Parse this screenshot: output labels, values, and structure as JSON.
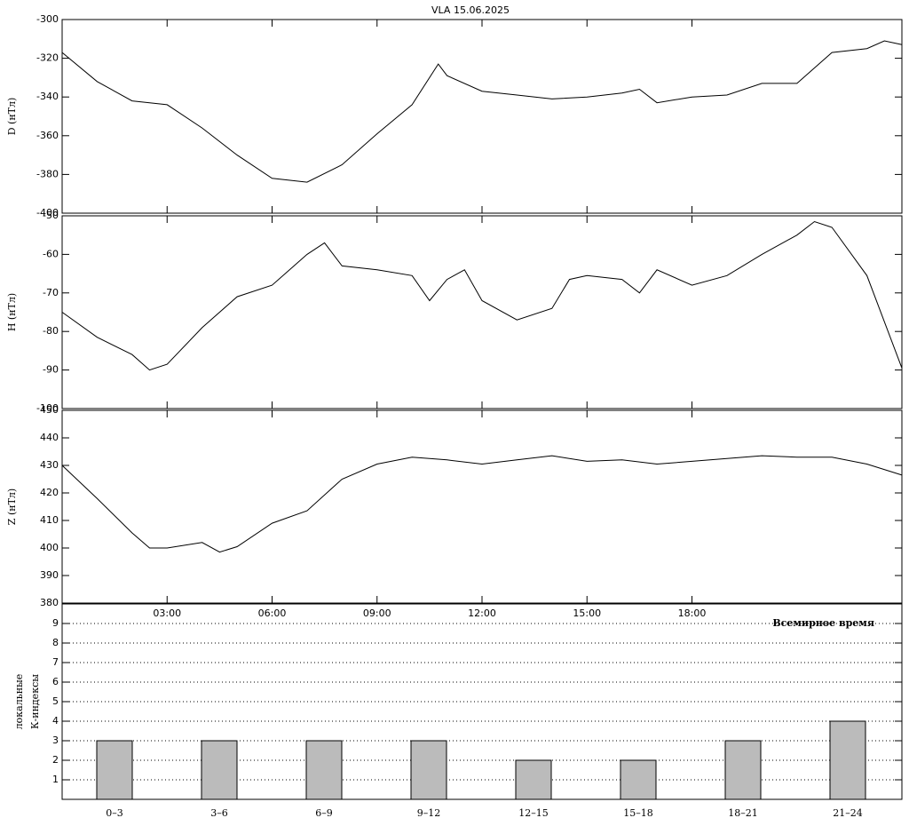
{
  "chart_data": [
    {
      "type": "line",
      "title": "VLA   15.06.2025",
      "ylabel": "D (нТл)",
      "color": "#000000",
      "x": [
        0,
        1,
        2,
        3,
        4,
        5,
        6,
        7,
        8,
        9,
        10,
        10.75,
        11,
        12,
        13,
        14,
        15,
        16,
        16.5,
        17,
        18,
        19,
        20,
        21,
        22,
        23,
        23.5,
        24
      ],
      "values": [
        -317,
        -332,
        -342,
        -344,
        -356,
        -370,
        -382,
        -384,
        -375,
        -359,
        -344,
        -323,
        -329,
        -337,
        -339,
        -341,
        -340,
        -338,
        -336,
        -343,
        -340,
        -339,
        -333,
        -333,
        -317,
        -315,
        -311,
        -313
      ],
      "xlim": [
        0,
        24
      ],
      "ylim": [
        -400,
        -300
      ],
      "yticks": [
        -400,
        -380,
        -360,
        -340,
        -320,
        -300
      ]
    },
    {
      "type": "line",
      "ylabel": "H (нТл)",
      "color": "#000000",
      "x": [
        0,
        1,
        2,
        2.5,
        3,
        4,
        5,
        6,
        6.5,
        7,
        7.5,
        8,
        9,
        10,
        10.5,
        11,
        11.5,
        12,
        13,
        14,
        14.5,
        15,
        16,
        16.5,
        17,
        18,
        19,
        20,
        21,
        21.5,
        22,
        23,
        24
      ],
      "values": [
        -75,
        -81.5,
        -86,
        -90,
        -88.5,
        -79,
        -71,
        -68,
        -64,
        -60,
        -57,
        -63,
        -64,
        -65.5,
        -72,
        -66.5,
        -64,
        -72,
        -77,
        -74,
        -66.5,
        -65.5,
        -66.5,
        -70,
        -64,
        -68,
        -65.5,
        -60,
        -55,
        -51.5,
        -53,
        -65.5,
        -89.5
      ],
      "xlim": [
        0,
        24
      ],
      "ylim": [
        -100,
        -50
      ],
      "yticks": [
        -100,
        -90,
        -80,
        -70,
        -60,
        -50
      ]
    },
    {
      "type": "line",
      "ylabel": "Z (нТл)",
      "color": "#000000",
      "x": [
        0,
        1,
        2,
        2.5,
        3,
        4,
        4.5,
        5,
        6,
        7,
        8,
        9,
        10,
        11,
        12,
        13,
        14,
        15,
        16,
        17,
        18,
        19,
        20,
        21,
        22,
        23,
        24
      ],
      "values": [
        430,
        418,
        405.5,
        400,
        400,
        402,
        398.5,
        400.5,
        409,
        413.5,
        425,
        430.5,
        433,
        432,
        430.5,
        432,
        433.5,
        431.5,
        432,
        430.5,
        431.5,
        432.5,
        433.5,
        433,
        433,
        430.5,
        426.5
      ],
      "xlim": [
        0,
        24
      ],
      "ylim": [
        380,
        450
      ],
      "yticks": [
        380,
        390,
        400,
        410,
        420,
        430,
        440,
        450
      ],
      "xticks": [
        {
          "value": 3,
          "label": "03:00"
        },
        {
          "value": 6,
          "label": "06:00"
        },
        {
          "value": 9,
          "label": "09:00"
        },
        {
          "value": 12,
          "label": "12:00"
        },
        {
          "value": 15,
          "label": "15:00"
        },
        {
          "value": 18,
          "label": "18:00"
        }
      ]
    },
    {
      "type": "bar",
      "ylabel": [
        "локальные",
        "К-индексы"
      ],
      "annotation": "Всемирное время",
      "color": "#bbbbbb",
      "categories": [
        "0–3",
        "3–6",
        "6–9",
        "9–12",
        "12–15",
        "15–18",
        "18–21",
        "21–24"
      ],
      "values": [
        3,
        3,
        3,
        3,
        2,
        2,
        3,
        4
      ],
      "ylim": [
        0,
        10
      ],
      "yticks": [
        1,
        2,
        3,
        4,
        5,
        6,
        7,
        8,
        9
      ],
      "grid": true
    }
  ]
}
